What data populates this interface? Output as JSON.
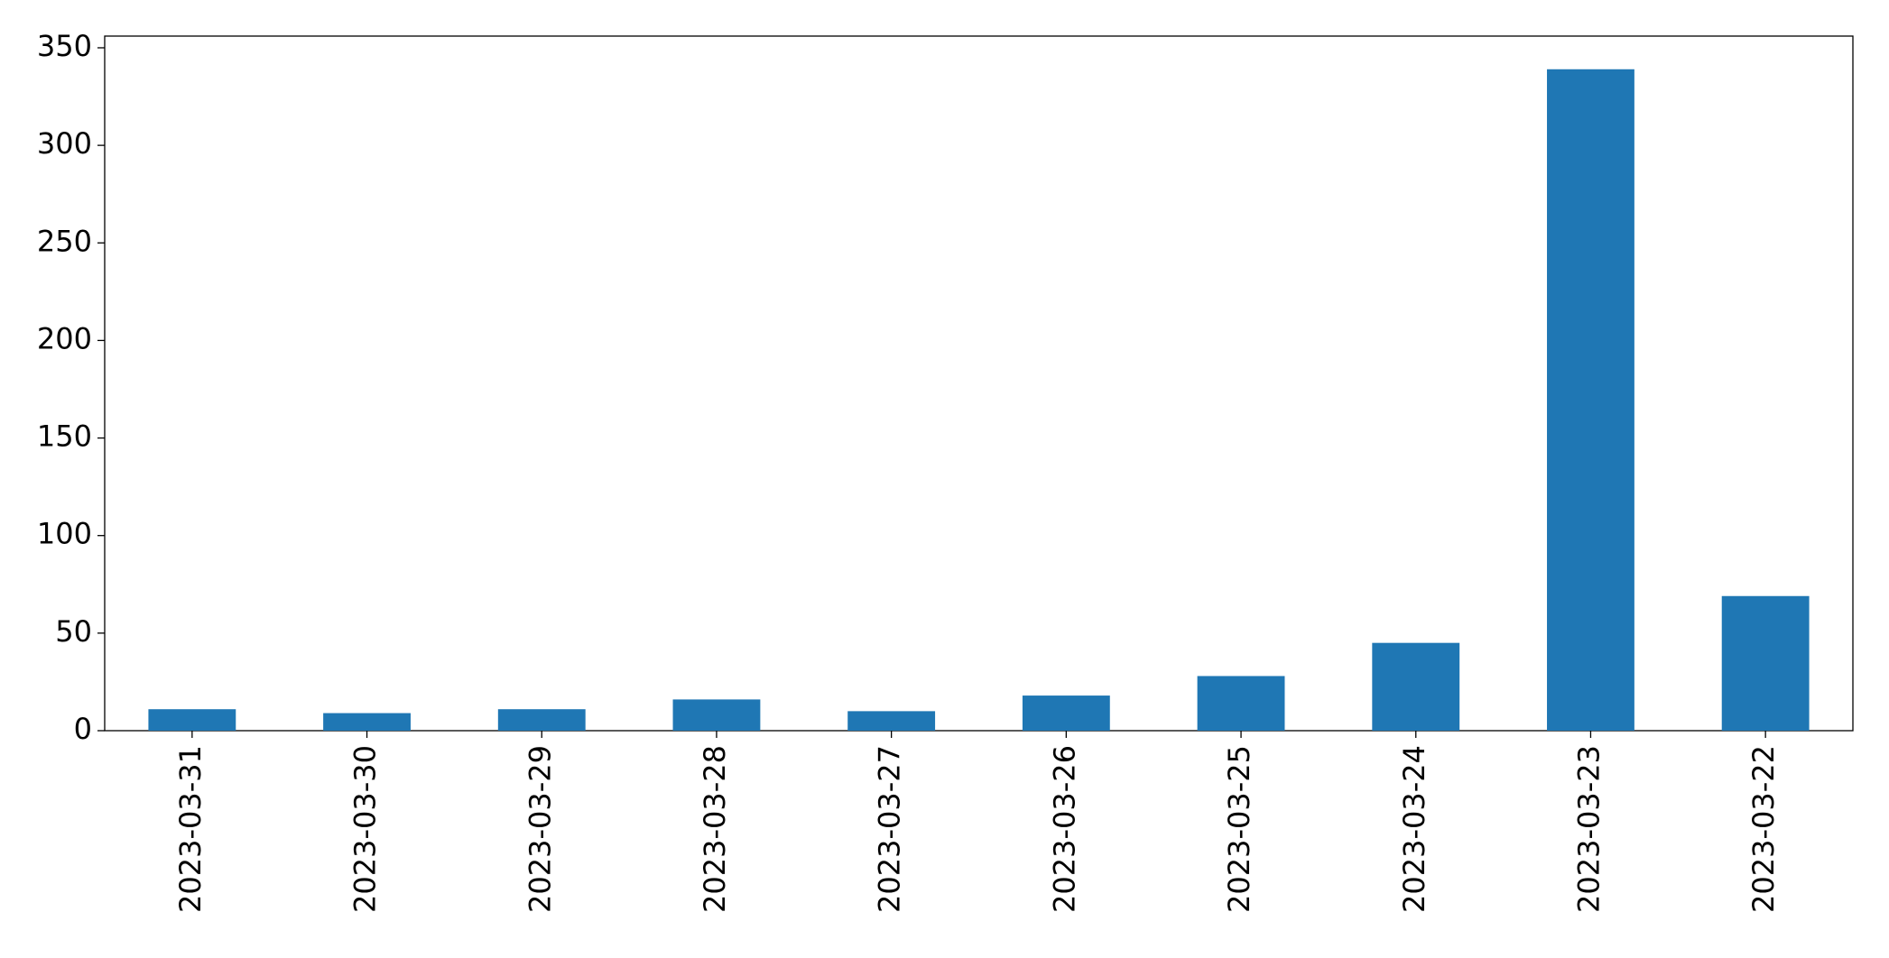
{
  "chart_data": {
    "type": "bar",
    "categories": [
      "2023-03-31",
      "2023-03-30",
      "2023-03-29",
      "2023-03-28",
      "2023-03-27",
      "2023-03-26",
      "2023-03-25",
      "2023-03-24",
      "2023-03-23",
      "2023-03-22"
    ],
    "values": [
      11,
      9,
      11,
      16,
      10,
      18,
      28,
      45,
      339,
      69
    ],
    "color": "#1f77b4",
    "ylim": [
      0,
      356
    ],
    "yticks": [
      0,
      50,
      100,
      150,
      200,
      250,
      300,
      350
    ],
    "grid": false
  }
}
